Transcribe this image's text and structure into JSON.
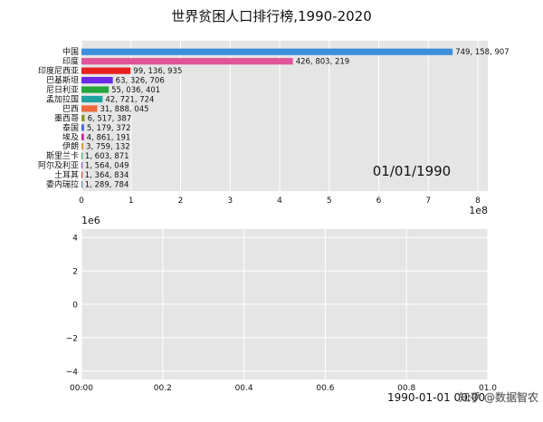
{
  "chart_data": [
    {
      "type": "bar",
      "orientation": "horizontal",
      "title": "世界贫困人口排行榜,1990-2020",
      "date": "01/01/1990",
      "x_multiplier": "1e8",
      "xlim": [
        0,
        8.2
      ],
      "x_ticks": [
        "0",
        "1",
        "2",
        "3",
        "4",
        "5",
        "6",
        "7",
        "8"
      ],
      "grid": true,
      "bars": [
        {
          "name": "中国",
          "value": 749158907,
          "label": "749, 158, 907",
          "color": "#3d8fdc"
        },
        {
          "name": "印度",
          "value": 426803219,
          "label": "426, 803, 219",
          "color": "#e0559a"
        },
        {
          "name": "印度尼西亚",
          "value": 99136935,
          "label": "99, 136, 935",
          "color": "#e82121"
        },
        {
          "name": "巴基斯坦",
          "value": 63326706,
          "label": "63, 326, 706",
          "color": "#6a2ae8"
        },
        {
          "name": "尼日利亚",
          "value": 55036401,
          "label": "55, 036, 401",
          "color": "#26a63a"
        },
        {
          "name": "孟加拉国",
          "value": 42721724,
          "label": "42, 721, 724",
          "color": "#1fa3a0"
        },
        {
          "name": "巴西",
          "value": 31888045,
          "label": "31, 888, 045",
          "color": "#ee6a3e"
        },
        {
          "name": "墨西哥",
          "value": 6517387,
          "label": "6, 517, 387",
          "color": "#8a9a2a"
        },
        {
          "name": "泰国",
          "value": 5179372,
          "label": "5, 179, 372",
          "color": "#4466dd"
        },
        {
          "name": "埃及",
          "value": 4861191,
          "label": "4, 861, 191",
          "color": "#d020a0"
        },
        {
          "name": "伊朗",
          "value": 3759132,
          "label": "3, 759, 132",
          "color": "#dd9933"
        },
        {
          "name": "斯里兰卡",
          "value": 1603871,
          "label": "1, 603, 871",
          "color": "#33aa66"
        },
        {
          "name": "阿尔及利亚",
          "value": 1564049,
          "label": "1, 564, 049",
          "color": "#9955cc"
        },
        {
          "name": "土耳其",
          "value": 1364834,
          "label": "1, 364, 834",
          "color": "#cc4444"
        },
        {
          "name": "委内瑞拉",
          "value": 1289784,
          "label": "1, 289, 784",
          "color": "#5588aa"
        }
      ]
    },
    {
      "type": "line",
      "y_multiplier": "1e6",
      "ylim": [
        -4.5,
        4.5
      ],
      "y_ticks": [
        -4,
        -2,
        0,
        2,
        4
      ],
      "y_tick_labels": [
        "−4",
        "−2",
        "0",
        "2",
        "4"
      ],
      "xlim": [
        0,
        1
      ],
      "x_ticks": [
        0,
        0.2,
        0.4,
        0.6,
        0.8,
        1.0
      ],
      "x_tick_labels": [
        "00:00",
        "00.2",
        "00.4",
        "00.6",
        "00.8",
        "01.0"
      ],
      "x_offset_label": "1990-01-01 00:00",
      "grid": true,
      "series": []
    }
  ],
  "watermark": "知乎 @数据智农"
}
